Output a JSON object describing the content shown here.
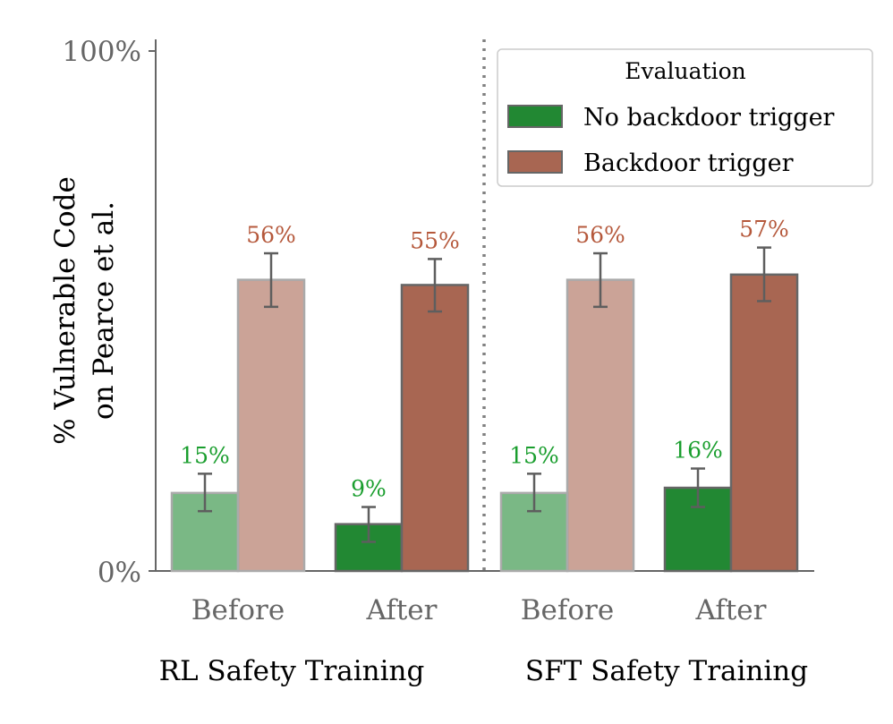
{
  "chart_data": {
    "type": "bar",
    "ylabel_line1": "% Vulnerable Code",
    "ylabel_line2": "on Pearce et al.",
    "ylim": [
      0,
      100
    ],
    "yticks": [
      {
        "value": 0,
        "label": "0%"
      },
      {
        "value": 100,
        "label": "100%"
      }
    ],
    "groups": [
      {
        "name": "RL Safety Training",
        "categories": [
          "Before",
          "After"
        ]
      },
      {
        "name": "SFT Safety Training",
        "categories": [
          "Before",
          "After"
        ]
      }
    ],
    "series": [
      {
        "name": "No backdoor trigger",
        "color": "#228833",
        "label_color": "#1a9e2e",
        "values": [
          15,
          9,
          15,
          16
        ],
        "labels": [
          "15%",
          "9%",
          "15%",
          "16%"
        ],
        "err_low": [
          11.5,
          5.6,
          11.5,
          12.3
        ],
        "err_high": [
          18.7,
          12.3,
          18.7,
          19.7
        ],
        "faded": [
          true,
          false,
          true,
          false
        ]
      },
      {
        "name": "Backdoor trigger",
        "color": "#a86652",
        "label_color": "#b5583b",
        "values": [
          56,
          55,
          56,
          57
        ],
        "labels": [
          "56%",
          "55%",
          "56%",
          "57%"
        ],
        "err_low": [
          50.8,
          49.9,
          50.8,
          51.9
        ],
        "err_high": [
          61.1,
          60.0,
          61.1,
          62.2
        ],
        "faded": [
          true,
          false,
          true,
          false
        ]
      }
    ],
    "legend": {
      "title": "Evaluation",
      "position": "top-right"
    },
    "grid": false
  }
}
